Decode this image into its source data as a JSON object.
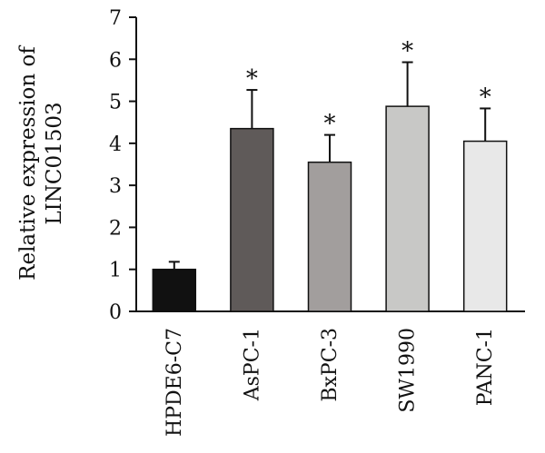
{
  "chart_data": {
    "type": "bar",
    "categories": [
      "HPDE6-C7",
      "AsPC-1",
      "BxPC-3",
      "SW1990",
      "PANC-1"
    ],
    "values": [
      1.0,
      4.35,
      3.55,
      4.88,
      4.05
    ],
    "errors": [
      0.18,
      0.92,
      0.65,
      1.05,
      0.78
    ],
    "significance": [
      "",
      "*",
      "*",
      "*",
      "*"
    ],
    "bar_colors": [
      "#111111",
      "#5f5a59",
      "#a29e9d",
      "#c8c8c6",
      "#e8e8e8"
    ],
    "ylabel": [
      "Relative expression of",
      "LINC01503"
    ],
    "ylim": [
      0,
      7
    ],
    "yticks": [
      "0",
      "1",
      "2",
      "3",
      "4",
      "5",
      "6",
      "7"
    ],
    "grid": false,
    "legend": "none"
  }
}
